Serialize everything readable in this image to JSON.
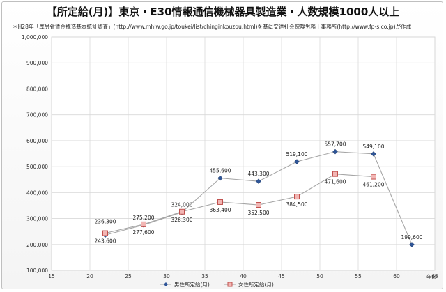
{
  "chart_data": {
    "type": "line",
    "title": "【所定給(月)】東京・E30情報通信機械器具製造業・人数規模1000人以上",
    "subtitle": "＊H28年「厚労省賃金構造基本統計調査」(http://www.mhlw.go.jp/toukei/list/chinginkouzou.html)を基に安達社会保険労務士事務所(http://www.fp-s.co.jp)が作成",
    "xlabel": "年齢",
    "xlim": [
      15,
      65
    ],
    "ylim": [
      100000,
      1000000
    ],
    "x_ticks": [
      "15",
      "20",
      "25",
      "30",
      "35",
      "40",
      "45",
      "50",
      "55",
      "60",
      "65"
    ],
    "y_ticks": [
      "100,000",
      "200,000",
      "300,000",
      "400,000",
      "500,000",
      "600,000",
      "700,000",
      "800,000",
      "900,000",
      "1,000,000"
    ],
    "grid": true,
    "legend_position": "bottom",
    "series": [
      {
        "name": "男性所定給(月)",
        "color": "#2f5597",
        "marker": "diamond",
        "x": [
          22,
          27,
          32,
          37,
          42,
          47,
          52,
          57,
          62
        ],
        "values": [
          236300,
          275200,
          324000,
          455600,
          443300,
          519100,
          557700,
          549100,
          199600
        ],
        "labels": [
          "236,300",
          "275,200",
          "324,000",
          "455,600",
          "443,300",
          "519,100",
          "557,700",
          "549,100",
          "199,600"
        ]
      },
      {
        "name": "女性所定給(月)",
        "color": "#c0504d",
        "marker": "square",
        "x": [
          22,
          27,
          32,
          37,
          42,
          47,
          52,
          57
        ],
        "values": [
          243600,
          277600,
          326300,
          363400,
          352500,
          384500,
          471600,
          461200
        ],
        "labels": [
          "243,600",
          "277,600",
          "326,300",
          "363,400",
          "352,500",
          "384,500",
          "471,600",
          "461,200"
        ]
      }
    ]
  }
}
